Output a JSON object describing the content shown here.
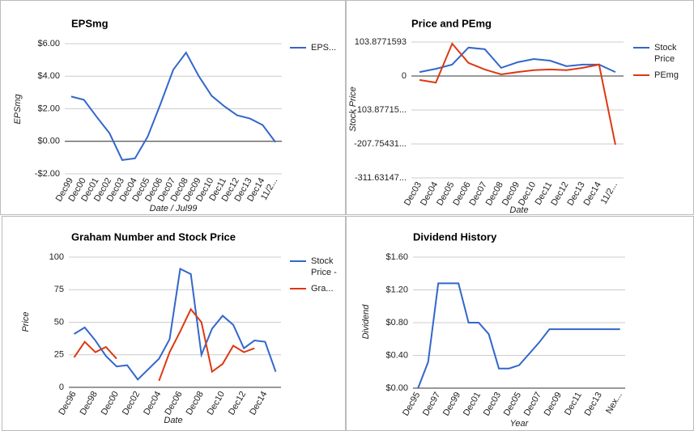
{
  "chart_data": [
    {
      "type": "line",
      "title": "EPSmg",
      "x_label": "Date / Jul99",
      "y_label": "EPSmg",
      "categories": [
        "Dec99",
        "Dec00",
        "Dec01",
        "Dec02",
        "Dec03",
        "Dec04",
        "Dec05",
        "Dec06",
        "Dec07",
        "Dec08",
        "Dec09",
        "Dec10",
        "Dec11",
        "Dec12",
        "Dec13",
        "Dec14",
        "11/2..."
      ],
      "series": [
        {
          "name": "EPS...",
          "color": "#3366cc",
          "values": [
            2.75,
            2.55,
            1.5,
            0.5,
            -1.15,
            -1.05,
            0.3,
            2.3,
            4.4,
            5.45,
            4.0,
            2.8,
            2.15,
            1.6,
            1.4,
            1.0,
            -0.05
          ]
        }
      ],
      "ylim": [
        -2,
        6
      ],
      "yticks": [
        {
          "value": -2,
          "label": "-$2.00"
        },
        {
          "value": 0,
          "label": "$0.00"
        },
        {
          "value": 2,
          "label": "$2.00"
        },
        {
          "value": 4,
          "label": "$4.00"
        },
        {
          "value": 6,
          "label": "$6.00"
        }
      ],
      "grid": true,
      "legend": "right"
    },
    {
      "type": "line",
      "title": "Price and PEmg",
      "x_label": "Date",
      "y_label": "Stock Price",
      "categories": [
        "Dec03",
        "Dec04",
        "Dec05",
        "Dec06",
        "Dec07",
        "Dec08",
        "Dec09",
        "Dec10",
        "Dec11",
        "Dec12",
        "Dec13",
        "Dec14",
        "11/2..."
      ],
      "series": [
        {
          "name": "Stock Price",
          "color": "#3366cc",
          "values": [
            12,
            22,
            35,
            87,
            82,
            25,
            42,
            52,
            47,
            30,
            35,
            35,
            12
          ]
        },
        {
          "name": "PEmg",
          "color": "#dc3912",
          "values": [
            -12,
            -20,
            99,
            40,
            20,
            5,
            12,
            18,
            20,
            18,
            25,
            35,
            -210
          ]
        }
      ],
      "ylim": [
        -311.6314779,
        103.8771593
      ],
      "yticks": [
        {
          "value": -311.6314779,
          "label": "-311.63147..."
        },
        {
          "value": -207.7543186,
          "label": "-207.75431..."
        },
        {
          "value": -103.8771593,
          "label": "-103.87715..."
        },
        0,
        103.8771593
      ],
      "grid": true,
      "legend": "right"
    },
    {
      "type": "line",
      "title": "Graham Number and Stock Price",
      "x_label": "Date",
      "y_label": "Price",
      "categories": [
        "Dec96",
        null,
        "Dec98",
        null,
        "Dec00",
        null,
        "Dec02",
        null,
        "Dec04",
        null,
        "Dec06",
        null,
        "Dec08",
        null,
        "Dec10",
        null,
        "Dec12",
        null,
        "Dec14",
        null
      ],
      "series": [
        {
          "name": "Stock Price -",
          "color": "#3366cc",
          "values": [
            41,
            46,
            36,
            24,
            16,
            17,
            6,
            14,
            22,
            37,
            91,
            87,
            25,
            45,
            55,
            48,
            30,
            36,
            35,
            12
          ]
        },
        {
          "name": "Gra...",
          "color": "#dc3912",
          "values": [
            23,
            35,
            27,
            31,
            22,
            null,
            null,
            null,
            5,
            27,
            43,
            60,
            50,
            12,
            18,
            32,
            27,
            30,
            null,
            null
          ]
        }
      ],
      "ylim": [
        0,
        100
      ],
      "yticks": [
        0,
        25,
        50,
        75,
        100
      ],
      "grid": true,
      "legend": "right"
    },
    {
      "type": "line",
      "title": "Dividend History",
      "x_label": "Year",
      "y_label": "Dividend",
      "categories": [
        "Dec95",
        null,
        "Dec97",
        null,
        "Dec99",
        null,
        "Dec01",
        null,
        "Dec03",
        null,
        "Dec05",
        null,
        "Dec07",
        null,
        "Dec09",
        null,
        "Dec11",
        null,
        "Dec13",
        null,
        "Nex..."
      ],
      "series": [
        {
          "name": null,
          "color": "#3366cc",
          "values": [
            0,
            0.32,
            1.28,
            1.28,
            1.28,
            0.8,
            0.8,
            0.66,
            0.24,
            0.24,
            0.28,
            0.42,
            0.56,
            0.72,
            0.72,
            0.72,
            0.72,
            0.72,
            0.72,
            0.72,
            0.72
          ]
        }
      ],
      "ylim": [
        0,
        1.6
      ],
      "yticks": [
        {
          "value": 0,
          "label": "$0.00"
        },
        {
          "value": 0.4,
          "label": "$0.40"
        },
        {
          "value": 0.8,
          "label": "$0.80"
        },
        {
          "value": 1.2,
          "label": "$1.20"
        },
        {
          "value": 1.6,
          "label": "$1.60"
        }
      ],
      "grid": true,
      "legend": null
    }
  ]
}
